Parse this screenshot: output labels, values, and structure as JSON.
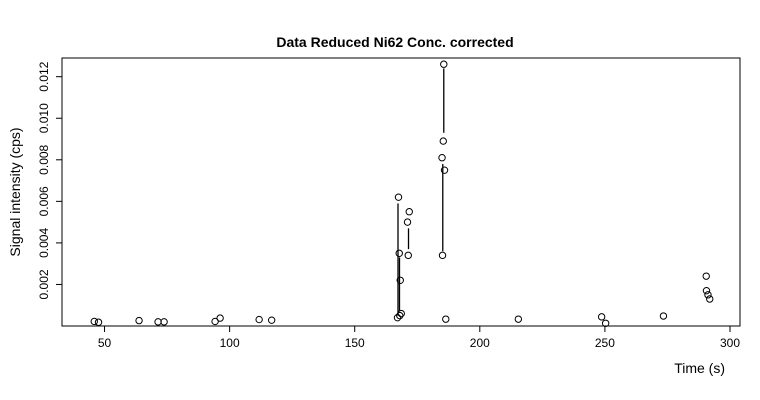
{
  "chart_data": {
    "type": "scatter",
    "title": "Data Reduced Ni62 Conc. corrected",
    "xlabel": "Time (s)",
    "ylabel": "Signal intensity (cps)",
    "xlim": [
      33,
      304
    ],
    "ylim": [
      0.0,
      0.0129
    ],
    "grid": false,
    "legend": "none",
    "x_ticks": [
      50,
      100,
      150,
      200,
      250,
      300
    ],
    "x_tick_labels": [
      "50",
      "100",
      "150",
      "200",
      "250",
      "300"
    ],
    "y_ticks": [
      0.002,
      0.004,
      0.006,
      0.008,
      0.01,
      0.012
    ],
    "y_tick_labels": [
      "0.002",
      "0.004",
      "0.006",
      "0.008",
      "0.010",
      "0.012"
    ],
    "points": [
      {
        "x": 45.9,
        "y": 0.00022
      },
      {
        "x": 47.6,
        "y": 0.00018
      },
      {
        "x": 63.8,
        "y": 0.00026
      },
      {
        "x": 71.4,
        "y": 0.0002
      },
      {
        "x": 73.8,
        "y": 0.0002
      },
      {
        "x": 94.2,
        "y": 0.00022
      },
      {
        "x": 96.2,
        "y": 0.00038
      },
      {
        "x": 111.8,
        "y": 0.00031
      },
      {
        "x": 116.8,
        "y": 0.00028
      },
      {
        "x": 167.1,
        "y": 0.0004
      },
      {
        "x": 167.5,
        "y": 0.0062
      },
      {
        "x": 167.8,
        "y": 0.0035
      },
      {
        "x": 168.2,
        "y": 0.0022
      },
      {
        "x": 168.0,
        "y": 0.0005
      },
      {
        "x": 168.6,
        "y": 0.0006
      },
      {
        "x": 171.1,
        "y": 0.005
      },
      {
        "x": 171.4,
        "y": 0.0034
      },
      {
        "x": 171.8,
        "y": 0.0055
      },
      {
        "x": 184.9,
        "y": 0.0081
      },
      {
        "x": 185.1,
        "y": 0.0034
      },
      {
        "x": 185.4,
        "y": 0.0089
      },
      {
        "x": 185.6,
        "y": 0.0126
      },
      {
        "x": 185.9,
        "y": 0.0075
      },
      {
        "x": 186.4,
        "y": 0.00033
      },
      {
        "x": 215.4,
        "y": 0.00033
      },
      {
        "x": 248.7,
        "y": 0.00044
      },
      {
        "x": 250.3,
        "y": 0.00013
      },
      {
        "x": 273.4,
        "y": 0.00048
      },
      {
        "x": 290.5,
        "y": 0.0024
      },
      {
        "x": 290.6,
        "y": 0.0017
      },
      {
        "x": 291.2,
        "y": 0.0015
      },
      {
        "x": 291.9,
        "y": 0.0013
      }
    ],
    "segments": [
      {
        "x": [
          167.3,
          167.3
        ],
        "y": [
          0.0005,
          0.0059
        ]
      },
      {
        "x": [
          167.9,
          167.9
        ],
        "y": [
          0.0007,
          0.0033
        ]
      },
      {
        "x": [
          171.5,
          171.5
        ],
        "y": [
          0.0037,
          0.0047
        ]
      },
      {
        "x": [
          185.2,
          185.2
        ],
        "y": [
          0.0036,
          0.0078
        ]
      },
      {
        "x": [
          185.6,
          185.6
        ],
        "y": [
          0.0093,
          0.0124
        ]
      }
    ]
  }
}
